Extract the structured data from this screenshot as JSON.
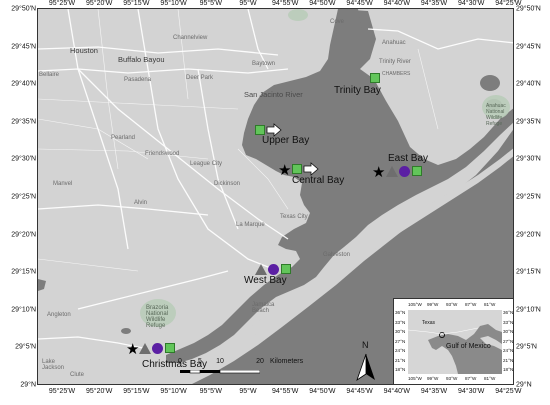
{
  "axes": {
    "top_ticks": [
      "95°25'W",
      "95°20'W",
      "95°15'W",
      "95°10'W",
      "95°5'W",
      "95°W",
      "94°55'W",
      "94°50'W",
      "94°45'W",
      "94°40'W",
      "94°35'W",
      "94°30'W",
      "94°25'W"
    ],
    "bottom_ticks": [
      "95°25'W",
      "95°20'W",
      "95°15'W",
      "95°10'W",
      "95°5'W",
      "95°W",
      "94°55'W",
      "94°50'W",
      "94°45'W",
      "94°40'W",
      "94°35'W",
      "94°30'W",
      "94°25'W"
    ],
    "left_ticks": [
      "29°50'N",
      "29°45'N",
      "29°40'N",
      "29°35'N",
      "29°30'N",
      "29°25'N",
      "29°20'N",
      "29°15'N",
      "29°10'N",
      "29°5'N",
      "29°N"
    ],
    "right_ticks": [
      "29°50'N",
      "29°45'N",
      "29°40'N",
      "29°35'N",
      "29°30'N",
      "29°25'N",
      "29°20'N",
      "29°15'N",
      "29°10'N",
      "29°5'N",
      "29°N"
    ]
  },
  "basemap_labels": {
    "houston": "Houston",
    "buffalo_bayou": "Buffalo Bayou",
    "channelview": "Channelview",
    "bellaire": "Bellaire",
    "pasadena": "Pasadena",
    "deer_park": "Deer Park",
    "baytown": "Baytown",
    "cove": "Cove",
    "anahuac": "Anahuac",
    "trinity_river_small": "Trinity River",
    "chambers": "CHAMBERS",
    "san_jacinto_river": "San Jacinto River",
    "pearland": "Pearland",
    "friendswood": "Friendswood",
    "league_city": "League City",
    "manvel": "Manvel",
    "dickinson": "Dickinson",
    "alvin": "Alvin",
    "la_marque": "La Marque",
    "texas_city": "Texas City",
    "galveston": "Galveston",
    "jamaica_beach": "Jamaica Beach",
    "brazoria_refuge": "Brazoria National Wildlife Refuge",
    "angleton": "Angleton",
    "lake_jackson": "Lake Jackson",
    "clute": "Clute",
    "anahuac_refuge": "Anahuac National Wildlife Refuge"
  },
  "sites": {
    "trinity_bay": "Trinity Bay",
    "upper_bay": "Upper Bay",
    "central_bay": "Central Bay",
    "east_bay": "East Bay",
    "west_bay": "West Bay",
    "christmas_bay": "Christmas Bay"
  },
  "symbols": {
    "square_color": "#62c55a",
    "circle_color": "#5b1fa3",
    "triangle_color": "#6e6e6e",
    "star_color": "#000000",
    "star_glyph": "★",
    "square_icon": "green-square-icon",
    "circle_icon": "purple-circle-icon",
    "triangle_icon": "gray-triangle-icon",
    "star_icon": "black-star-icon",
    "arrow_icon": "white-arrow-icon"
  },
  "scale": {
    "ticks": [
      "0",
      "5",
      "10",
      "20"
    ],
    "unit": "Kilometers"
  },
  "north_label": "N",
  "inset": {
    "top_ticks": [
      "105°W",
      "99°W",
      "93°W",
      "87°W",
      "81°W"
    ],
    "bottom_ticks": [
      "105°W",
      "99°W",
      "93°W",
      "87°W",
      "81°W"
    ],
    "left_ticks": [
      "36°N",
      "33°N",
      "30°N",
      "27°N",
      "24°N",
      "21°N",
      "18°N"
    ],
    "right_ticks": [
      "36°N",
      "33°N",
      "30°N",
      "27°N",
      "24°N",
      "21°N",
      "18°N"
    ],
    "texas_label": "Texas",
    "gulf_label": "Gulf of Mexico"
  },
  "colors": {
    "land": "#d3d3d3",
    "water": "#7d7d7d",
    "road": "#ffffff"
  }
}
